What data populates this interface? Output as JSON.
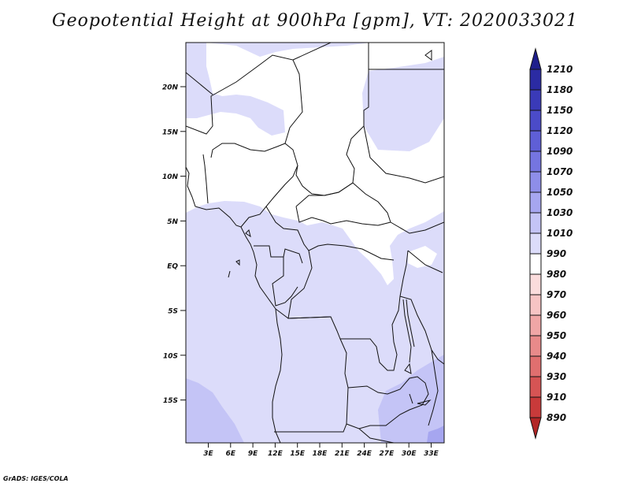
{
  "title": "Geopotential Height at 900hPa [gpm], VT: 2020033021",
  "credit": "GrADS: IGES/COLA",
  "map": {
    "region": "Central Africa",
    "lat_labels": [
      "20N",
      "15N",
      "10N",
      "5N",
      "EQ",
      "5S",
      "10S",
      "15S"
    ],
    "lon_labels": [
      "3E",
      "6E",
      "9E",
      "12E",
      "15E",
      "18E",
      "21E",
      "24E",
      "27E",
      "30E",
      "33E"
    ]
  },
  "colorbar": {
    "levels": [
      "1210",
      "1180",
      "1150",
      "1120",
      "1090",
      "1070",
      "1050",
      "1030",
      "1010",
      "990",
      "980",
      "970",
      "960",
      "950",
      "940",
      "930",
      "910",
      "890"
    ],
    "colors": [
      "#1e1e8c",
      "#2b2ba3",
      "#3a3ab8",
      "#4b4bc8",
      "#5f5fd6",
      "#7575e0",
      "#8e8ee9",
      "#a6a6f0",
      "#c4c4f6",
      "#dcdcfa",
      "#ffffff",
      "#fbdcdc",
      "#f7c4c4",
      "#f0a6a6",
      "#e88a8a",
      "#e06f6f",
      "#d65454",
      "#c83a3a",
      "#b22626"
    ]
  },
  "fields": {
    "background_color": "#dcdcfa",
    "low_color": "#ffffff",
    "mid_color": "#c4c4f6",
    "high_color": "#a6a6f0"
  }
}
